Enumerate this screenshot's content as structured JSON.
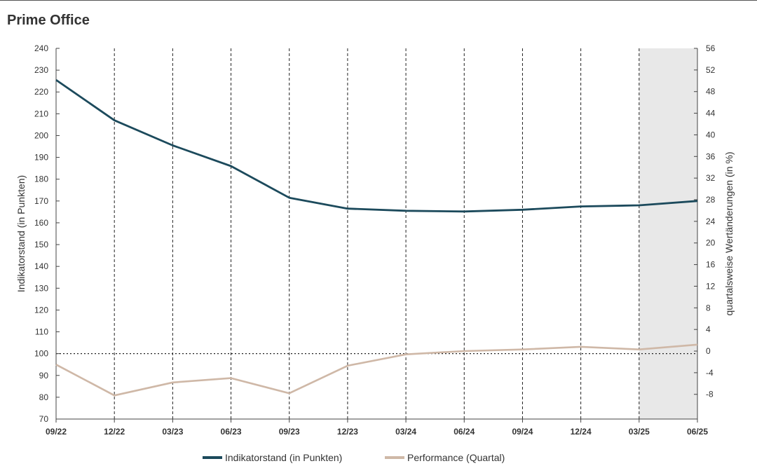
{
  "title": "Prime Office",
  "chart_data": {
    "type": "line",
    "x": [
      "09/22",
      "12/22",
      "03/23",
      "06/23",
      "09/23",
      "12/23",
      "03/24",
      "06/24",
      "09/24",
      "12/24",
      "03/25",
      "06/25"
    ],
    "ylabel_left": "Indikatorstand (in Punkten)",
    "ylabel_right": "quartalsweise Wertänderungen (in %)",
    "ylim_left": [
      70,
      240
    ],
    "yticks_left": [
      70,
      80,
      90,
      100,
      110,
      120,
      130,
      140,
      150,
      160,
      170,
      180,
      190,
      200,
      210,
      220,
      230,
      240
    ],
    "ylim_right": [
      -12.57,
      56
    ],
    "yticks_right": [
      -8,
      -4,
      0,
      4,
      8,
      12,
      16,
      20,
      24,
      28,
      32,
      36,
      40,
      44,
      48,
      52,
      56
    ],
    "reference_line": {
      "axis": "left",
      "value": 100,
      "style": "dotted"
    },
    "highlight_region": {
      "from": "03/25",
      "to": "06/25",
      "color": "#e8e8e8"
    },
    "grid": "vertical-dashed",
    "legend_position": "bottom-center",
    "series": [
      {
        "name": "Indikatorstand (in Punkten)",
        "axis": "left",
        "color": "#1c4a5c",
        "values": [
          225.5,
          207,
          195.5,
          186,
          171.5,
          166.5,
          165.5,
          165.2,
          166,
          167.5,
          168,
          170
        ]
      },
      {
        "name": "Performance (Quartal)",
        "axis": "right",
        "color": "#cfb8a7",
        "values": [
          -2.5,
          -8.2,
          -5.8,
          -5.0,
          -7.8,
          -2.7,
          -0.6,
          0.0,
          0.3,
          0.8,
          0.3,
          1.2
        ]
      }
    ]
  }
}
